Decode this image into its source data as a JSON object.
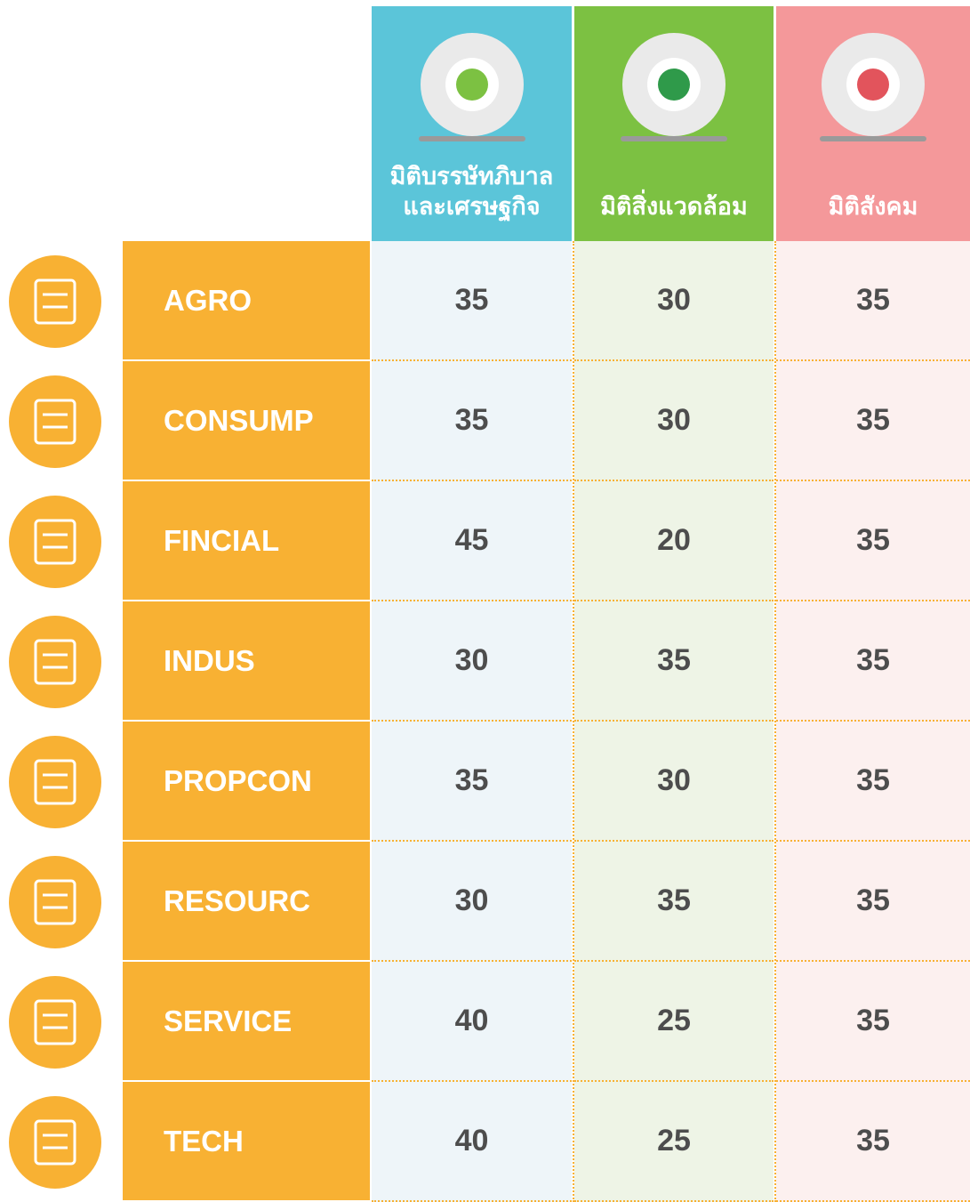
{
  "table": {
    "headers": [
      {
        "lines": [
          "มิติบรรษัทภิบาล",
          "และเศรษฐกิจ"
        ]
      },
      {
        "lines": [
          "มิติสิ่งแวดล้อม"
        ]
      },
      {
        "lines": [
          "มิติสังคม"
        ]
      }
    ],
    "rows": [
      {
        "label": "AGRO",
        "values": [
          35,
          30,
          35
        ]
      },
      {
        "label": "CONSUMP",
        "values": [
          35,
          30,
          35
        ]
      },
      {
        "label": "FINCIAL",
        "values": [
          45,
          20,
          35
        ]
      },
      {
        "label": "INDUS",
        "values": [
          30,
          35,
          35
        ]
      },
      {
        "label": "PROPCON",
        "values": [
          35,
          30,
          35
        ]
      },
      {
        "label": "RESOURC",
        "values": [
          30,
          35,
          35
        ]
      },
      {
        "label": "SERVICE",
        "values": [
          40,
          25,
          35
        ]
      },
      {
        "label": "TECH",
        "values": [
          40,
          25,
          35
        ]
      }
    ]
  }
}
